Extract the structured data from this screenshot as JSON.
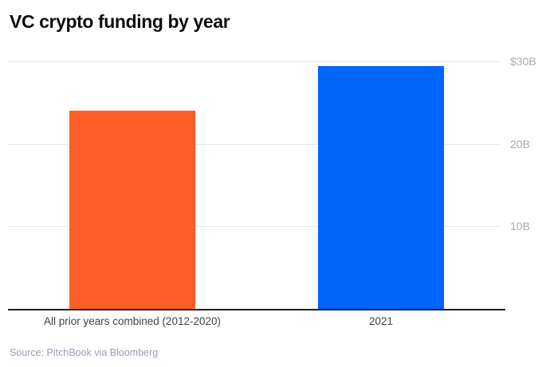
{
  "chart_data": {
    "type": "bar",
    "title": "VC crypto funding by year",
    "categories": [
      "All prior years combined (2012-2020)",
      "2021"
    ],
    "values": [
      24,
      29.4
    ],
    "unit": "billions of USD",
    "xlabel": "",
    "ylabel": "",
    "ylim": [
      0,
      30
    ],
    "yticks": [
      {
        "value": 30,
        "label": "$30B"
      },
      {
        "value": 20,
        "label": "20B"
      },
      {
        "value": 10,
        "label": "10B"
      }
    ],
    "bar_colors": [
      "#FD5E28",
      "#0165FC"
    ],
    "grid": "horizontal",
    "legend_position": "none",
    "ytick_side": "right"
  },
  "source": "Source: PitchBook via Bloomberg"
}
